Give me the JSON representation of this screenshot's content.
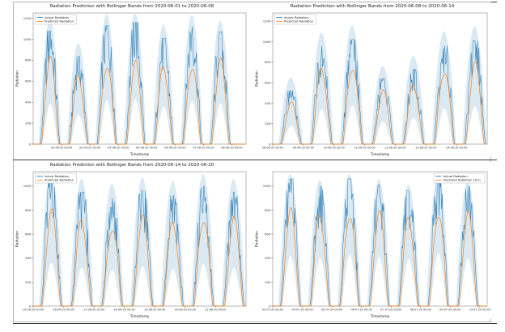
{
  "page": {
    "background": "#ffffff",
    "frame_border_color": "#b5b5b5",
    "rule_color": "#3b3b3b"
  },
  "chart_data": [
    {
      "type": "line",
      "title": "Radiation Prediction with Bollinger Bands from 2020-06-01 to 2020-06-08",
      "xlabel": "Timestamp",
      "ylabel": "Radiation",
      "ylim": [
        0,
        1250
      ],
      "yticks": [
        0,
        200,
        400,
        600,
        800,
        1000,
        1200
      ],
      "xticklabels": [
        "02-06-20 00:00",
        "03-06-20 00:00",
        "04-06-20 00:00",
        "05-06-20 00:00",
        "06-06-20 00:00",
        "07-06-20 00:00",
        "08-06-20 00:00"
      ],
      "tick_offset": 1,
      "tick_span": 7.5,
      "grid": false,
      "legend": {
        "position": "upper-left",
        "entries": [
          {
            "label": "Actual Radiation",
            "color": "#1f77b4"
          },
          {
            "label": "Predicted Radiation",
            "color": "#ff7f0e"
          }
        ]
      },
      "band": {
        "name": "Bollinger Band",
        "color": "#1f77b4",
        "opacity": 0.16,
        "daily_upper": [
          1190,
          960,
          1240,
          1250,
          1140,
          1230,
          1180
        ],
        "daily_lower": [
          380,
          280,
          420,
          430,
          360,
          410,
          390
        ]
      },
      "series": [
        {
          "name": "Actual Radiation",
          "color": "#1f77b4",
          "style": "jagged",
          "daily_peaks": [
            1080,
            840,
            1130,
            1160,
            1010,
            1120,
            1070
          ]
        },
        {
          "name": "Predicted Radiation",
          "color": "#ff7f0e",
          "style": "smooth",
          "daily_peaks": [
            850,
            690,
            830,
            810,
            780,
            820,
            830
          ]
        }
      ]
    },
    {
      "type": "line",
      "title": "Radiation Prediction with Bollinger Bands from 2020-06-08 to 2020-06-14",
      "xlabel": "Timestamp",
      "ylabel": "Radiation",
      "ylim": [
        0,
        1280
      ],
      "yticks": [
        0,
        200,
        400,
        600,
        800,
        1000,
        1200
      ],
      "xticklabels": [
        "08-06-20 00:00",
        "09-06-20 00:00",
        "10-06-20 00:00",
        "11-06-20 00:00",
        "12-06-20 00:00",
        "13-06-20 00:00",
        "14-06-20 00:00"
      ],
      "tick_offset": 0,
      "tick_span": 7,
      "grid": false,
      "legend": {
        "position": "upper-left",
        "entries": [
          {
            "label": "Actual Radiation",
            "color": "#1f77b4"
          },
          {
            "label": "Predicted Radiation",
            "color": "#ff7f0e"
          }
        ]
      },
      "band": {
        "name": "Bollinger Band",
        "color": "#1f77b4",
        "opacity": 0.16,
        "daily_upper": [
          650,
          1090,
          1160,
          760,
          860,
          1100,
          1150
        ],
        "daily_lower": [
          180,
          340,
          380,
          220,
          260,
          350,
          370
        ]
      },
      "series": [
        {
          "name": "Actual Radiation",
          "color": "#1f77b4",
          "style": "jagged",
          "daily_peaks": [
            520,
            960,
            1020,
            640,
            730,
            960,
            1010
          ]
        },
        {
          "name": "Predicted Radiation",
          "color": "#ff7f0e",
          "style": "smooth",
          "daily_peaks": [
            420,
            780,
            830,
            540,
            610,
            790,
            820
          ]
        }
      ]
    },
    {
      "type": "line",
      "title": "Radiation Prediction with Bollinger Bands from 2020-06-14 to 2020-06-20",
      "xlabel": "Timestamp",
      "ylabel": "Radiation",
      "ylim": [
        0,
        1120
      ],
      "yticks": [
        0,
        200,
        400,
        600,
        800,
        1000
      ],
      "xticklabels": [
        "15-06-20 00:00",
        "16-06-20 00:00",
        "17-06-20 00:00",
        "18-06-20 00:00",
        "19-06-20 00:00",
        "20-06-20 00:00",
        "21-06-20 00:00"
      ],
      "tick_offset": 0,
      "tick_span": 7,
      "grid": false,
      "legend": {
        "position": "upper-left",
        "entries": [
          {
            "label": "Actual Radiation",
            "color": "#1f77b4"
          },
          {
            "label": "Predicted Radiation",
            "color": "#ff7f0e"
          }
        ]
      },
      "band": {
        "name": "Bollinger Band",
        "color": "#1f77b4",
        "opacity": 0.16,
        "daily_upper": [
          1110,
          1060,
          1020,
          1070,
          1040,
          1100,
          1060
        ],
        "daily_lower": [
          360,
          320,
          300,
          330,
          310,
          350,
          320
        ]
      },
      "series": [
        {
          "name": "Actual Radiation",
          "color": "#1f77b4",
          "style": "jagged",
          "daily_peaks": [
            1060,
            950,
            900,
            960,
            920,
            1000,
            950
          ]
        },
        {
          "name": "Predicted Radiation",
          "color": "#ff7f0e",
          "style": "smooth",
          "daily_peaks": [
            820,
            760,
            720,
            770,
            740,
            800,
            760
          ]
        }
      ]
    },
    {
      "type": "line",
      "title": "",
      "xlabel": "Timestamp",
      "ylabel": "Radiation",
      "ylim": [
        0,
        1120
      ],
      "yticks": [
        0,
        200,
        400,
        600,
        800,
        1000
      ],
      "xticklabels": [
        "03-07-20 00:00",
        "04-07-20 00:00",
        "05-07-20 00:00",
        "06-07-20 00:00",
        "07-07-20 00:00",
        "08-07-20 00:00",
        "09-07-20 00:00",
        "10-07-20 00:00"
      ],
      "tick_offset": 0,
      "tick_span": 7.25,
      "grid": false,
      "legend": {
        "position": "upper-right",
        "entries": [
          {
            "label": "Actual Radiation",
            "color": "#1f77b4"
          },
          {
            "label": "Predicted Radiation (1hr)",
            "color": "#ff7f0e"
          }
        ]
      },
      "band": {
        "name": "Bollinger Band",
        "color": "#1f77b4",
        "opacity": 0.16,
        "daily_upper": [
          1100,
          1050,
          1100,
          1060,
          1010,
          1110,
          1050
        ],
        "daily_lower": [
          420,
          400,
          430,
          410,
          390,
          440,
          400
        ]
      },
      "series": [
        {
          "name": "Actual Radiation",
          "color": "#1f77b4",
          "style": "jagged",
          "daily_peaks": [
            1060,
            1000,
            1060,
            1010,
            960,
            1080,
            1000
          ]
        },
        {
          "name": "Predicted Radiation",
          "color": "#ff7f0e",
          "style": "smooth",
          "daily_peaks": [
            830,
            800,
            840,
            810,
            780,
            850,
            800
          ]
        }
      ]
    }
  ]
}
